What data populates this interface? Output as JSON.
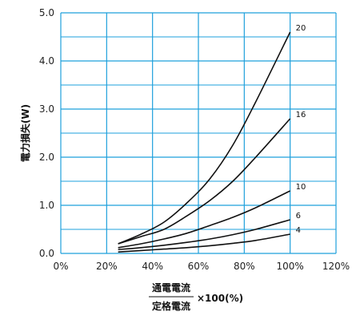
{
  "chart_data": {
    "type": "line",
    "ylabel": "電力損失(W)",
    "xlabel": {
      "numerator": "通電電流",
      "denominator": "定格電流",
      "suffix": "×100(%)"
    },
    "xlim": [
      0,
      120
    ],
    "ylim": [
      0,
      5
    ],
    "grid": true,
    "x_ticks": [
      0,
      20,
      40,
      60,
      80,
      100,
      120
    ],
    "x_tick_labels": [
      "0%",
      "20%",
      "40%",
      "60%",
      "80%",
      "100%",
      "120%"
    ],
    "y_ticks": [
      0,
      1,
      2,
      3,
      4,
      5
    ],
    "y_tick_labels": [
      "0.0",
      "1.0",
      "2.0",
      "3.0",
      "4.0",
      "5.0"
    ],
    "y_minor_gridlines": [
      0.5,
      1.5,
      2.5,
      3.5,
      4.5
    ],
    "series": [
      {
        "name": "20",
        "x": [
          25,
          35,
          45,
          55,
          65,
          75,
          85,
          100
        ],
        "y": [
          0.2,
          0.4,
          0.65,
          1.05,
          1.55,
          2.25,
          3.15,
          4.6
        ]
      },
      {
        "name": "16",
        "x": [
          25,
          35,
          45,
          55,
          65,
          75,
          85,
          100
        ],
        "y": [
          0.2,
          0.35,
          0.5,
          0.78,
          1.1,
          1.5,
          2.0,
          2.8
        ]
      },
      {
        "name": "10",
        "x": [
          25,
          35,
          45,
          55,
          65,
          75,
          85,
          100
        ],
        "y": [
          0.12,
          0.2,
          0.3,
          0.42,
          0.58,
          0.75,
          0.95,
          1.3
        ]
      },
      {
        "name": "6",
        "x": [
          25,
          35,
          45,
          55,
          65,
          75,
          85,
          100
        ],
        "y": [
          0.08,
          0.12,
          0.17,
          0.23,
          0.3,
          0.39,
          0.5,
          0.7
        ]
      },
      {
        "name": "4",
        "x": [
          25,
          35,
          45,
          55,
          65,
          75,
          85,
          100
        ],
        "y": [
          0.03,
          0.06,
          0.09,
          0.12,
          0.16,
          0.21,
          0.27,
          0.4
        ]
      }
    ],
    "colors": {
      "grid": "#1ea0dc",
      "line": "#111111"
    }
  }
}
